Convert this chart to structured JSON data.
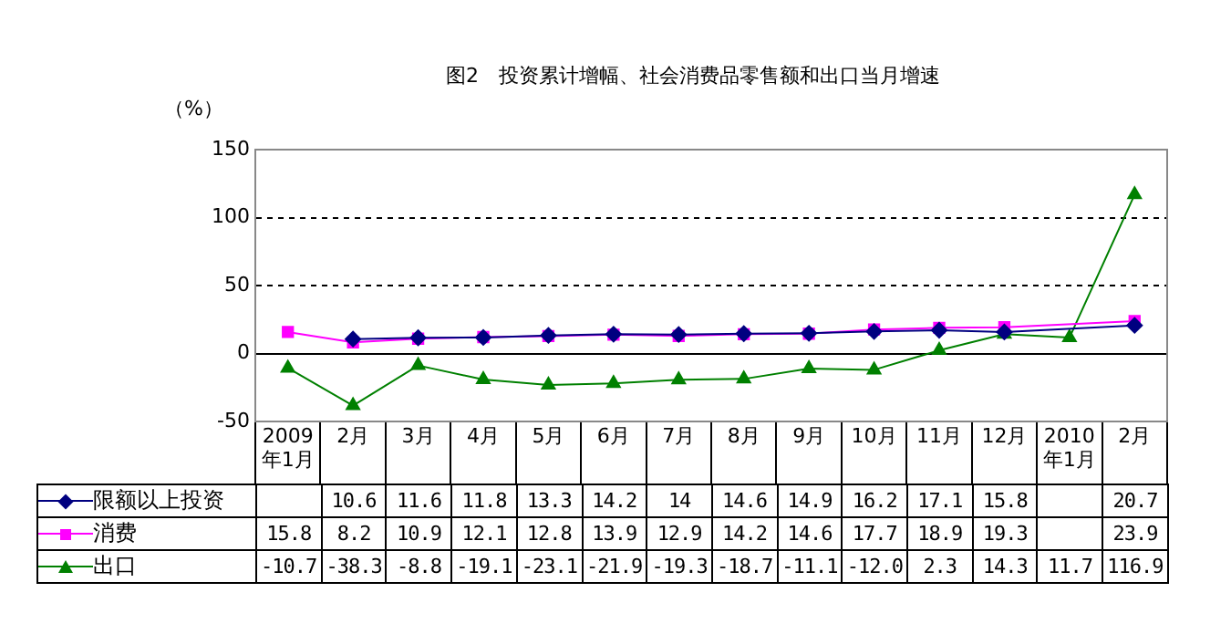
{
  "chart_data": {
    "type": "line",
    "title": "图2　投资累计增幅、社会消费品零售额和出口当月增速",
    "ylabel": "（%）",
    "categories": [
      "2009年1月",
      "2月",
      "3月",
      "4月",
      "5月",
      "6月",
      "7月",
      "8月",
      "9月",
      "10月",
      "11月",
      "12月",
      "2010年1月",
      "2月"
    ],
    "series": [
      {
        "name": "限额以上投资",
        "color": "#000080",
        "marker": "diamond",
        "values": [
          null,
          10.6,
          11.6,
          11.8,
          13.3,
          14.2,
          14,
          14.6,
          14.9,
          16.2,
          17.1,
          15.8,
          null,
          20.7
        ],
        "value_labels": [
          null,
          "10.6",
          "11.6",
          "11.8",
          "13.3",
          "14.2",
          "14",
          "14.6",
          "14.9",
          "16.2",
          "17.1",
          "15.8",
          null,
          "20.7"
        ]
      },
      {
        "name": "消费",
        "color": "#ff00ff",
        "marker": "square",
        "values": [
          15.8,
          8.2,
          10.9,
          12.1,
          12.8,
          13.9,
          12.9,
          14.2,
          14.6,
          17.7,
          18.9,
          19.3,
          null,
          23.9
        ],
        "value_labels": [
          "15.8",
          "8.2",
          "10.9",
          "12.1",
          "12.8",
          "13.9",
          "12.9",
          "14.2",
          "14.6",
          "17.7",
          "18.9",
          "19.3",
          null,
          "23.9"
        ]
      },
      {
        "name": "出口",
        "color": "#008000",
        "marker": "triangle",
        "values": [
          -10.7,
          -38.3,
          -8.8,
          -19.1,
          -23.1,
          -21.9,
          -19.3,
          -18.7,
          -11.1,
          -12.0,
          2.3,
          14.3,
          11.7,
          116.9
        ],
        "value_labels": [
          "-10.7",
          "-38.3",
          "-8.8",
          "-19.1",
          "-23.1",
          "-21.9",
          "-19.3",
          "-18.7",
          "-11.1",
          "-12.0",
          "2.3",
          "14.3",
          "11.7",
          "116.9"
        ]
      }
    ],
    "ylim": [
      -50,
      150
    ],
    "yticks": [
      -50,
      0,
      50,
      100,
      150
    ],
    "grid": "y",
    "line_style": "solid",
    "legend": "bottom left"
  }
}
